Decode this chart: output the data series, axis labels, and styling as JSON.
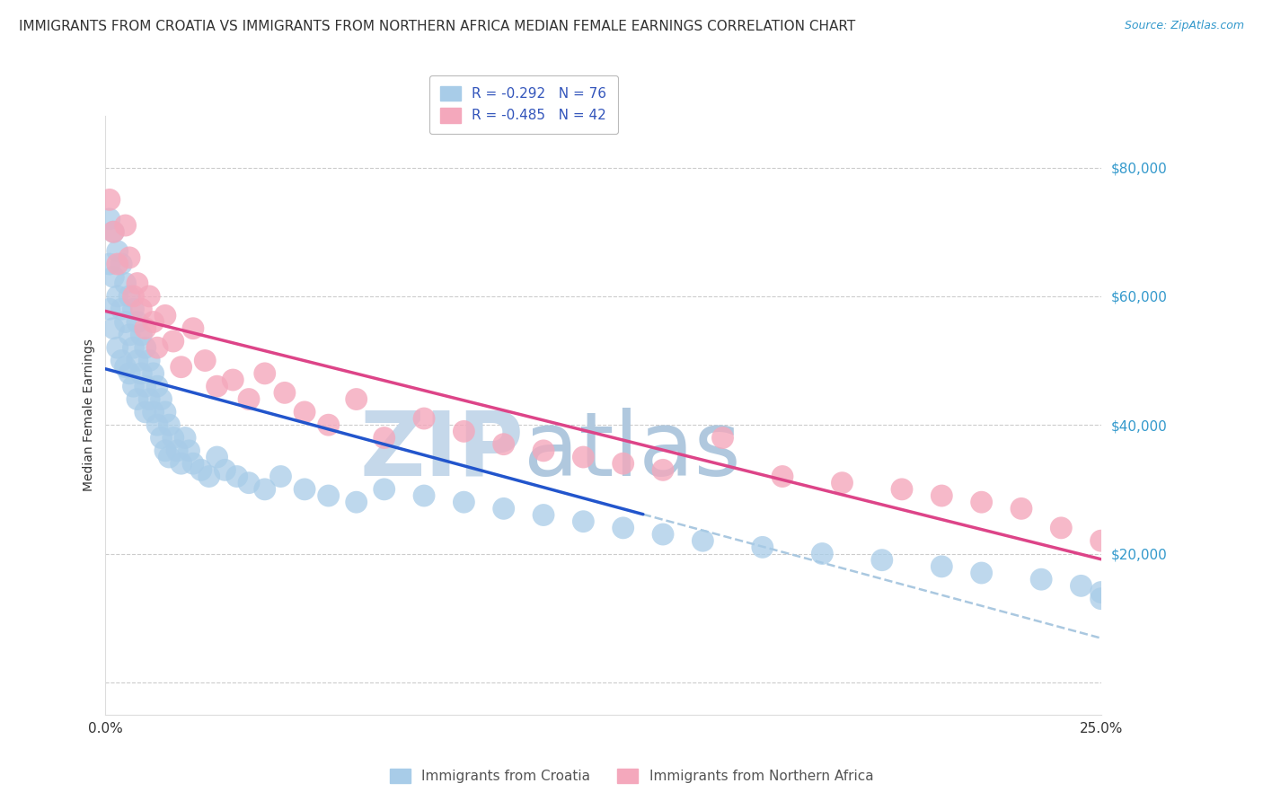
{
  "title": "IMMIGRANTS FROM CROATIA VS IMMIGRANTS FROM NORTHERN AFRICA MEDIAN FEMALE EARNINGS CORRELATION CHART",
  "source": "Source: ZipAtlas.com",
  "ylabel": "Median Female Earnings",
  "xlim": [
    0.0,
    0.25
  ],
  "ylim": [
    -5000,
    88000
  ],
  "yticks": [
    0,
    20000,
    40000,
    60000,
    80000
  ],
  "yticklabels": [
    "",
    "$20,000",
    "$40,000",
    "$60,000",
    "$80,000"
  ],
  "croatia_R": -0.292,
  "croatia_N": 76,
  "northern_africa_R": -0.485,
  "northern_africa_N": 42,
  "croatia_color": "#a8cce8",
  "northern_africa_color": "#f4a8bc",
  "trendline_croatia_color": "#2255cc",
  "trendline_na_color": "#dd4488",
  "dashed_line_color": "#aac8e0",
  "watermark_zip_color": "#c8d8ea",
  "watermark_atlas_color": "#b8cce0",
  "background_color": "#ffffff",
  "grid_color": "#cccccc",
  "title_fontsize": 11,
  "axis_label_fontsize": 10,
  "tick_fontsize": 11,
  "legend_fontsize": 11,
  "croatia_x": [
    0.001,
    0.001,
    0.001,
    0.002,
    0.002,
    0.002,
    0.003,
    0.003,
    0.003,
    0.004,
    0.004,
    0.004,
    0.005,
    0.005,
    0.005,
    0.006,
    0.006,
    0.006,
    0.007,
    0.007,
    0.007,
    0.008,
    0.008,
    0.008,
    0.009,
    0.009,
    0.01,
    0.01,
    0.01,
    0.011,
    0.011,
    0.012,
    0.012,
    0.013,
    0.013,
    0.014,
    0.014,
    0.015,
    0.015,
    0.016,
    0.016,
    0.017,
    0.018,
    0.019,
    0.02,
    0.021,
    0.022,
    0.024,
    0.026,
    0.028,
    0.03,
    0.033,
    0.036,
    0.04,
    0.044,
    0.05,
    0.056,
    0.063,
    0.07,
    0.08,
    0.09,
    0.1,
    0.11,
    0.12,
    0.13,
    0.14,
    0.15,
    0.165,
    0.18,
    0.195,
    0.21,
    0.22,
    0.235,
    0.245,
    0.25,
    0.25
  ],
  "croatia_y": [
    72000,
    65000,
    58000,
    70000,
    63000,
    55000,
    67000,
    60000,
    52000,
    65000,
    58000,
    50000,
    62000,
    56000,
    49000,
    60000,
    54000,
    48000,
    58000,
    52000,
    46000,
    56000,
    50000,
    44000,
    54000,
    48000,
    52000,
    46000,
    42000,
    50000,
    44000,
    48000,
    42000,
    46000,
    40000,
    44000,
    38000,
    42000,
    36000,
    40000,
    35000,
    38000,
    36000,
    34000,
    38000,
    36000,
    34000,
    33000,
    32000,
    35000,
    33000,
    32000,
    31000,
    30000,
    32000,
    30000,
    29000,
    28000,
    30000,
    29000,
    28000,
    27000,
    26000,
    25000,
    24000,
    23000,
    22000,
    21000,
    20000,
    19000,
    18000,
    17000,
    16000,
    15000,
    14000,
    13000
  ],
  "northern_africa_x": [
    0.001,
    0.002,
    0.003,
    0.005,
    0.006,
    0.007,
    0.008,
    0.009,
    0.01,
    0.011,
    0.012,
    0.013,
    0.015,
    0.017,
    0.019,
    0.022,
    0.025,
    0.028,
    0.032,
    0.036,
    0.04,
    0.045,
    0.05,
    0.056,
    0.063,
    0.07,
    0.08,
    0.09,
    0.1,
    0.11,
    0.12,
    0.13,
    0.14,
    0.155,
    0.17,
    0.185,
    0.2,
    0.21,
    0.22,
    0.23,
    0.24,
    0.25
  ],
  "northern_africa_y": [
    75000,
    70000,
    65000,
    71000,
    66000,
    60000,
    62000,
    58000,
    55000,
    60000,
    56000,
    52000,
    57000,
    53000,
    49000,
    55000,
    50000,
    46000,
    47000,
    44000,
    48000,
    45000,
    42000,
    40000,
    44000,
    38000,
    41000,
    39000,
    37000,
    36000,
    35000,
    34000,
    33000,
    38000,
    32000,
    31000,
    30000,
    29000,
    28000,
    27000,
    24000,
    22000
  ]
}
